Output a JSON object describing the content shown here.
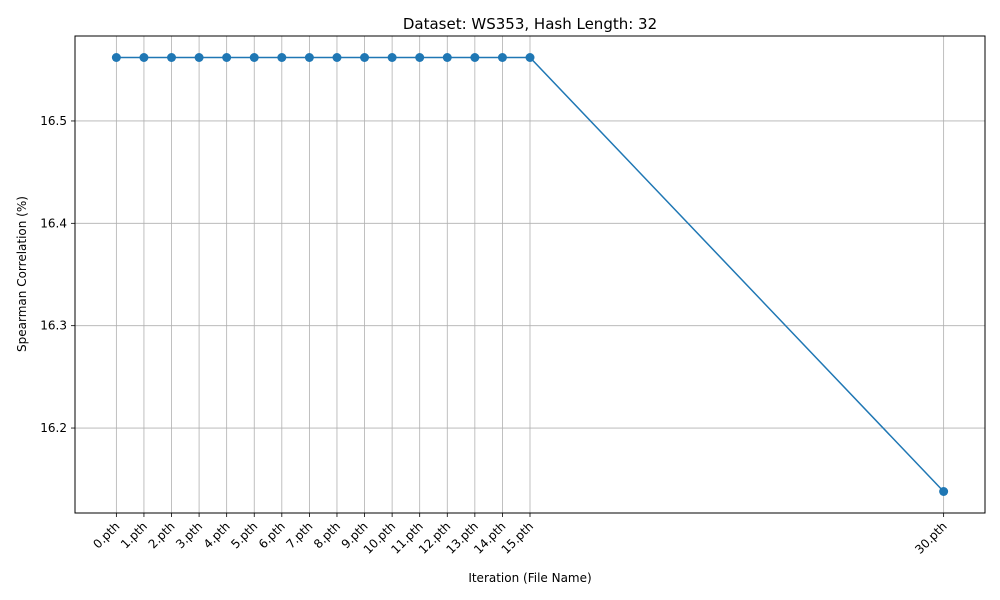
{
  "chart_data": {
    "type": "line",
    "title": "Dataset: WS353, Hash Length: 32",
    "xlabel": "Iteration (File Name)",
    "ylabel": "Spearman Correlation (%)",
    "x_positions": [
      0,
      1,
      2,
      3,
      4,
      5,
      6,
      7,
      8,
      9,
      10,
      11,
      12,
      13,
      14,
      15,
      30
    ],
    "categories": [
      "0.pth",
      "1.pth",
      "2.pth",
      "3.pth",
      "4.pth",
      "5.pth",
      "6.pth",
      "7.pth",
      "8.pth",
      "9.pth",
      "10.pth",
      "11.pth",
      "12.pth",
      "13.pth",
      "14.pth",
      "15.pth",
      "30.pth"
    ],
    "series": [
      {
        "values": [
          16.562,
          16.562,
          16.562,
          16.562,
          16.562,
          16.562,
          16.562,
          16.562,
          16.562,
          16.562,
          16.562,
          16.562,
          16.562,
          16.562,
          16.562,
          16.562,
          16.138
        ],
        "color": "#1f77b4",
        "marker": "circle"
      }
    ],
    "y_ticks": [
      "16.2",
      "16.3",
      "16.4",
      "16.5"
    ],
    "xlim": [
      -1.5,
      31.5
    ],
    "ylim": [
      16.117,
      16.583
    ],
    "grid": true,
    "legend": "none"
  }
}
